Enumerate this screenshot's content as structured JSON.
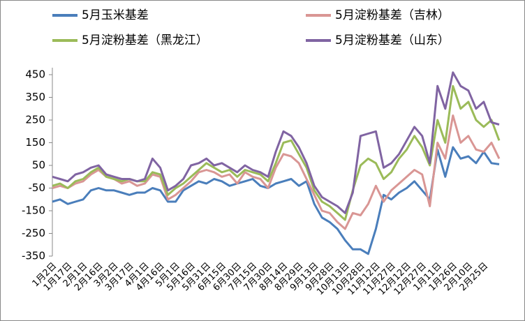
{
  "chart_data": {
    "type": "line",
    "categories": [
      "1月2日",
      null,
      "1月17日",
      null,
      "2月1日",
      null,
      "2月16日",
      null,
      "3月2日",
      null,
      "3月17日",
      null,
      "4月1日",
      null,
      "4月16日",
      null,
      "5月1日",
      null,
      "5月16日",
      null,
      "5月31日",
      null,
      "6月15日",
      null,
      "6月30日",
      null,
      "7月15日",
      null,
      "7月30日",
      null,
      "8月14日",
      null,
      "8月29日",
      null,
      "9月13日",
      null,
      "9月28日",
      null,
      "10月13日",
      null,
      "10月28日",
      null,
      "11月12日",
      null,
      "11月27日",
      null,
      "12月12日",
      null,
      "12月27日",
      null,
      "1月11日",
      null,
      "1月26日",
      null,
      "2月10日",
      null,
      "2月25日",
      null,
      null
    ],
    "series": [
      {
        "name": "5月玉米基差",
        "color": "#4a7ebb",
        "values": [
          -110,
          -100,
          -120,
          -110,
          -100,
          -60,
          -50,
          -60,
          -60,
          -70,
          -80,
          -70,
          -70,
          -50,
          -60,
          -110,
          -110,
          -60,
          -40,
          -20,
          -30,
          -10,
          -20,
          -40,
          -30,
          -20,
          -10,
          -40,
          -50,
          -30,
          -20,
          -10,
          -40,
          -20,
          -120,
          -180,
          -200,
          -230,
          -280,
          -320,
          -320,
          -340,
          -230,
          -80,
          -100,
          -70,
          -50,
          -20,
          -60,
          -100,
          120,
          0,
          130,
          80,
          90,
          60,
          110,
          60,
          55
        ]
      },
      {
        "name": "5月淀粉基差（吉林）",
        "color": "#d99694",
        "values": [
          -50,
          -40,
          -50,
          -30,
          -20,
          10,
          30,
          0,
          -10,
          -30,
          -20,
          -40,
          -30,
          10,
          0,
          -100,
          -80,
          -50,
          -20,
          20,
          30,
          20,
          0,
          10,
          -30,
          20,
          0,
          -10,
          -50,
          40,
          100,
          90,
          60,
          -10,
          -80,
          -150,
          -160,
          -200,
          -230,
          -160,
          -170,
          -120,
          -40,
          -110,
          -60,
          -30,
          0,
          30,
          10,
          -130,
          150,
          80,
          270,
          150,
          180,
          120,
          110,
          150,
          80
        ]
      },
      {
        "name": "5月淀粉基差（黑龙江）",
        "color": "#9bbb59",
        "values": [
          -40,
          -30,
          -50,
          -20,
          -10,
          20,
          40,
          0,
          -10,
          -20,
          -10,
          -20,
          -20,
          20,
          10,
          -80,
          -50,
          -30,
          0,
          30,
          60,
          40,
          20,
          30,
          0,
          30,
          20,
          10,
          -20,
          60,
          150,
          160,
          100,
          40,
          -60,
          -110,
          -130,
          -160,
          -190,
          -60,
          50,
          80,
          60,
          -10,
          20,
          80,
          120,
          180,
          130,
          50,
          250,
          150,
          400,
          300,
          330,
          250,
          220,
          250,
          160
        ]
      },
      {
        "name": "5月淀粉基差（山东）",
        "color": "#8064a2",
        "values": [
          0,
          -10,
          -20,
          10,
          20,
          40,
          50,
          10,
          0,
          -10,
          -10,
          -20,
          -10,
          80,
          40,
          -60,
          -40,
          -10,
          50,
          60,
          80,
          50,
          60,
          40,
          20,
          50,
          30,
          20,
          0,
          110,
          200,
          180,
          130,
          60,
          -40,
          -90,
          -110,
          -130,
          -160,
          -70,
          180,
          190,
          200,
          40,
          60,
          100,
          160,
          220,
          180,
          60,
          400,
          300,
          460,
          400,
          380,
          300,
          330,
          240,
          230
        ]
      }
    ],
    "ylim": [
      -350,
      450
    ],
    "yticks": [
      -350,
      -250,
      -150,
      -50,
      50,
      150,
      250,
      350,
      450
    ]
  }
}
